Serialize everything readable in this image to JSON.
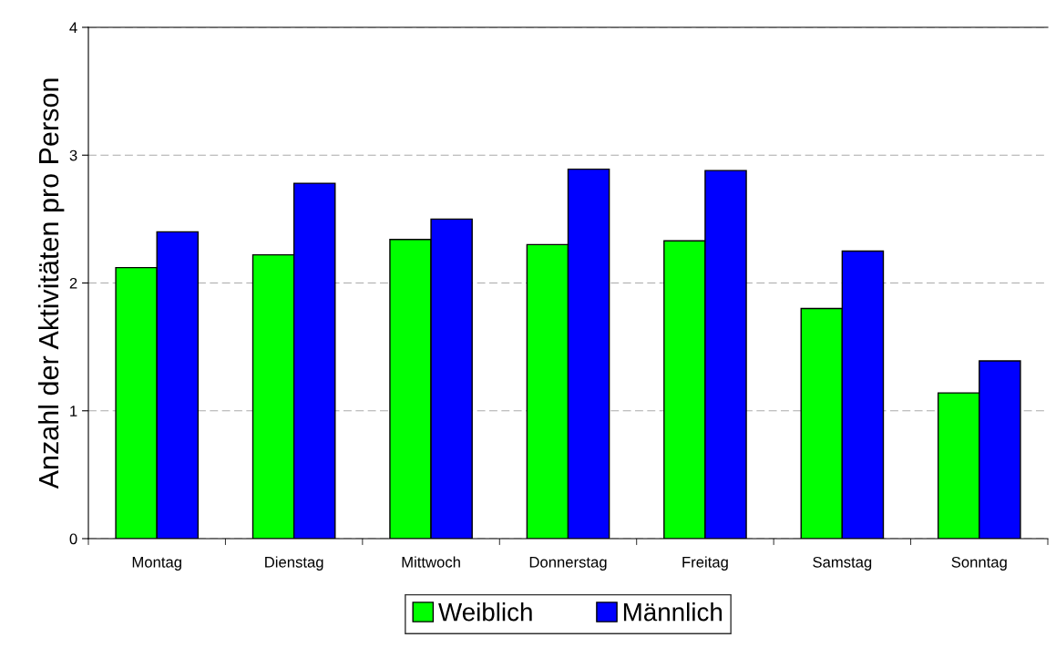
{
  "chart_data": {
    "type": "bar",
    "ylabel": "Anzahl der Aktivitäten pro Person",
    "categories": [
      "Montag",
      "Dienstag",
      "Mittwoch",
      "Donnerstag",
      "Freitag",
      "Samstag",
      "Sonntag"
    ],
    "series": [
      {
        "name": "Weiblich",
        "color": "#00ff00",
        "values": [
          2.12,
          2.22,
          2.34,
          2.3,
          2.33,
          1.8,
          1.14
        ]
      },
      {
        "name": "Männlich",
        "color": "#0000ff",
        "values": [
          2.4,
          2.78,
          2.5,
          2.89,
          2.88,
          2.25,
          1.39
        ]
      }
    ],
    "ylim": [
      0,
      4
    ],
    "yticks": [
      0,
      1,
      2,
      3,
      4
    ],
    "grid": "y",
    "legend": "bottom"
  }
}
